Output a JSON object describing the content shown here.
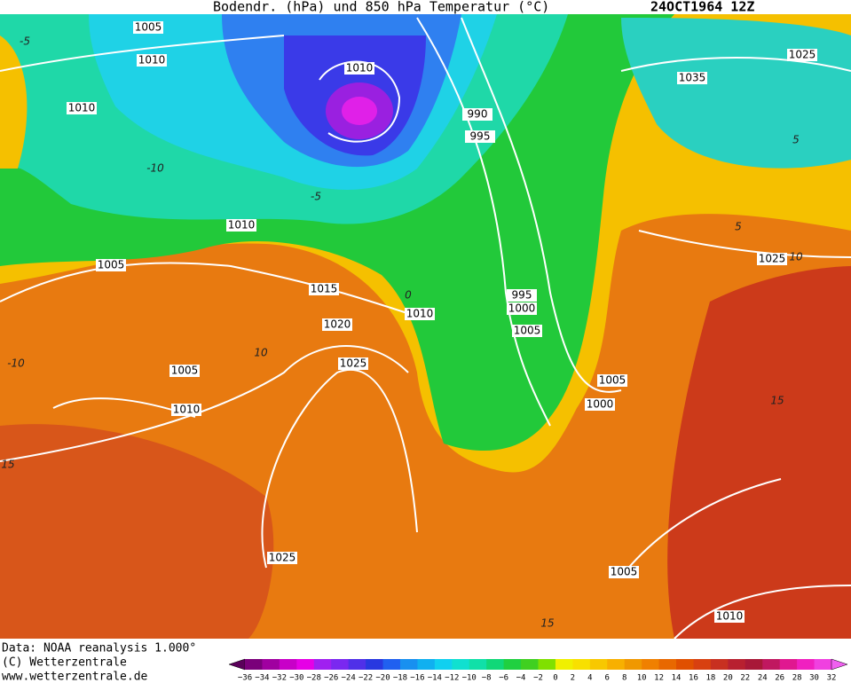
{
  "header": {
    "title": "Bodendr. (hPa) und 850 hPa Temperatur (°C)",
    "date": "24OCT1964 12Z"
  },
  "isobar_labels": [
    "1005",
    "1010",
    "1010",
    "1010",
    "990",
    "995",
    "1025",
    "1035",
    "1010",
    "1005",
    "1015",
    "1020",
    "1010",
    "995",
    "1000",
    "1005",
    "1005",
    "1010",
    "1025",
    "1025",
    "1005",
    "1000",
    "1025",
    "1005",
    "1010"
  ],
  "temperature_labels": [
    "-5",
    "-10",
    "-5",
    "0",
    "5",
    "5",
    "10",
    "10",
    "-10",
    "15",
    "15",
    "15"
  ],
  "footer": {
    "data": "Data: NOAA reanalysis 1.000°",
    "copyright": "(C) Wetterzentrale",
    "url": "www.wetterzentrale.de"
  },
  "colorbar": {
    "ticks": [
      "−36",
      "−34",
      "−32",
      "−30",
      "−28",
      "−26",
      "−24",
      "−22",
      "−20",
      "−18",
      "−16",
      "−14",
      "−12",
      "−10",
      "−8",
      "−6",
      "−4",
      "−2",
      "0",
      "2",
      "4",
      "6",
      "8",
      "10",
      "12",
      "14",
      "16",
      "18",
      "20",
      "22",
      "24",
      "26",
      "28",
      "30",
      "32"
    ]
  }
}
